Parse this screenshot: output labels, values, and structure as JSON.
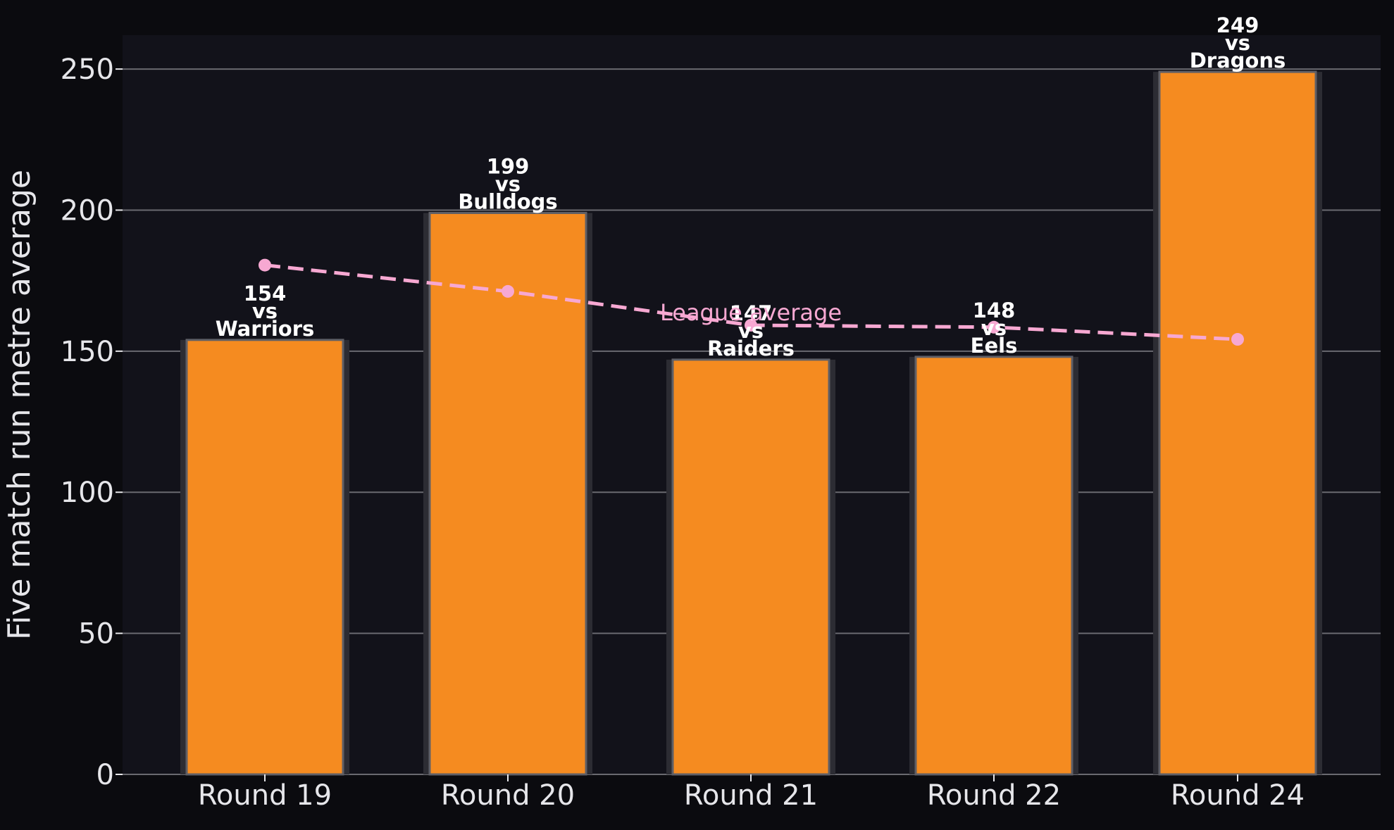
{
  "chart_data": {
    "type": "bar",
    "title": "",
    "xlabel": "",
    "ylabel": "Five match run metre average",
    "ylim": [
      0,
      262
    ],
    "yticks": [
      0,
      50,
      100,
      150,
      200,
      250
    ],
    "grid": true,
    "categories": [
      "Round 19",
      "Round 20",
      "Round 21",
      "Round 22",
      "Round 24"
    ],
    "values": [
      154,
      199,
      147,
      148,
      249
    ],
    "opponents": [
      "Warriors",
      "Bulldogs",
      "Raiders",
      "Eels",
      "Dragons"
    ],
    "bar_labels": [
      [
        "154",
        "vs",
        "Warriors"
      ],
      [
        "199",
        "vs",
        "Bulldogs"
      ],
      [
        "147",
        "vs",
        "Raiders"
      ],
      [
        "148",
        "vs",
        "Eels"
      ],
      [
        "249",
        "vs",
        "Dragons"
      ]
    ],
    "series": [
      {
        "type": "line",
        "label": "League average",
        "style": "dashed",
        "values": [
          180.5,
          171.2,
          159.2,
          158.5,
          154.2
        ]
      }
    ],
    "colors": {
      "background": "#0b0b0f",
      "plot_background": "#12121a",
      "bar_fill": "#f58b20",
      "bar_edge": "#5f5f66",
      "bar_shadow": "#2c2c33",
      "grid": "#6a6a70",
      "axis_text": "#e6e6ea",
      "bar_label_text": "#ffffff",
      "average_line": "#f7a8d2"
    }
  }
}
